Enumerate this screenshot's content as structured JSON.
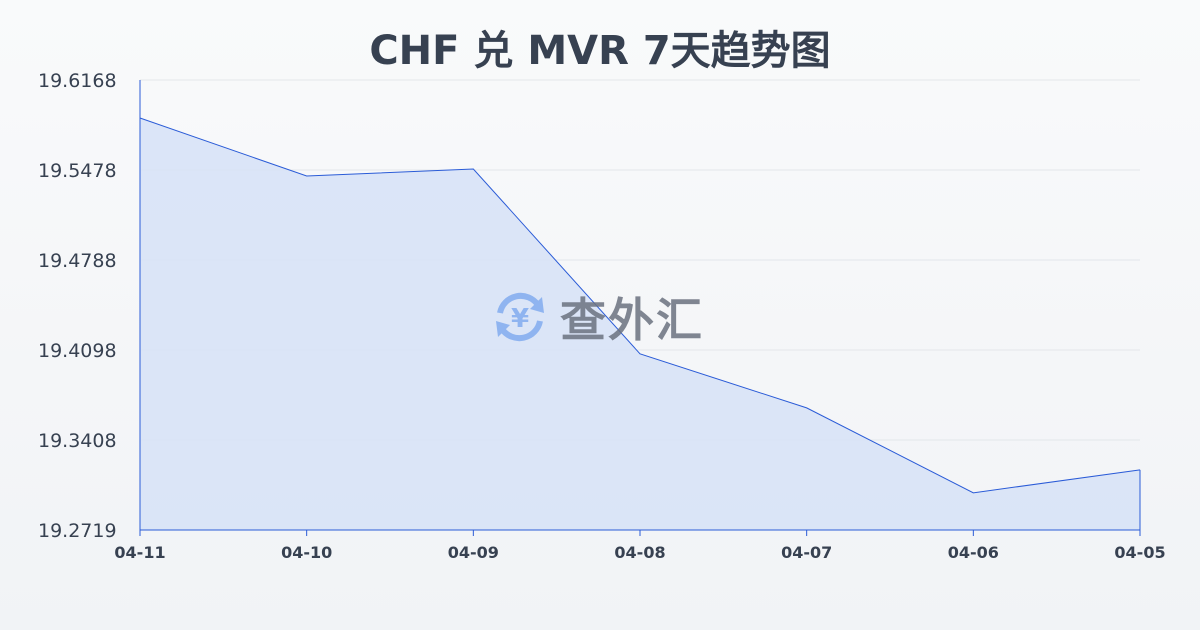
{
  "chart_data": {
    "type": "area",
    "title": "CHF 兑 MVR 7天趋势图",
    "categories": [
      "04-11",
      "04-10",
      "04-09",
      "04-08",
      "04-07",
      "04-06",
      "04-05"
    ],
    "values": [
      19.5877,
      19.5432,
      19.5486,
      19.4069,
      19.3655,
      19.3004,
      19.318
    ],
    "yticks": [
      "19.6168",
      "19.5478",
      "19.4788",
      "19.4098",
      "19.3408",
      "19.2719"
    ],
    "ylim": [
      19.2719,
      19.6168
    ],
    "grid": true,
    "line_color": "#2a5bd7",
    "fill_color": "#d6e2f7"
  },
  "watermark": {
    "text": "查外汇",
    "icon": "yen-exchange-icon",
    "color": "#8fb4f0"
  }
}
